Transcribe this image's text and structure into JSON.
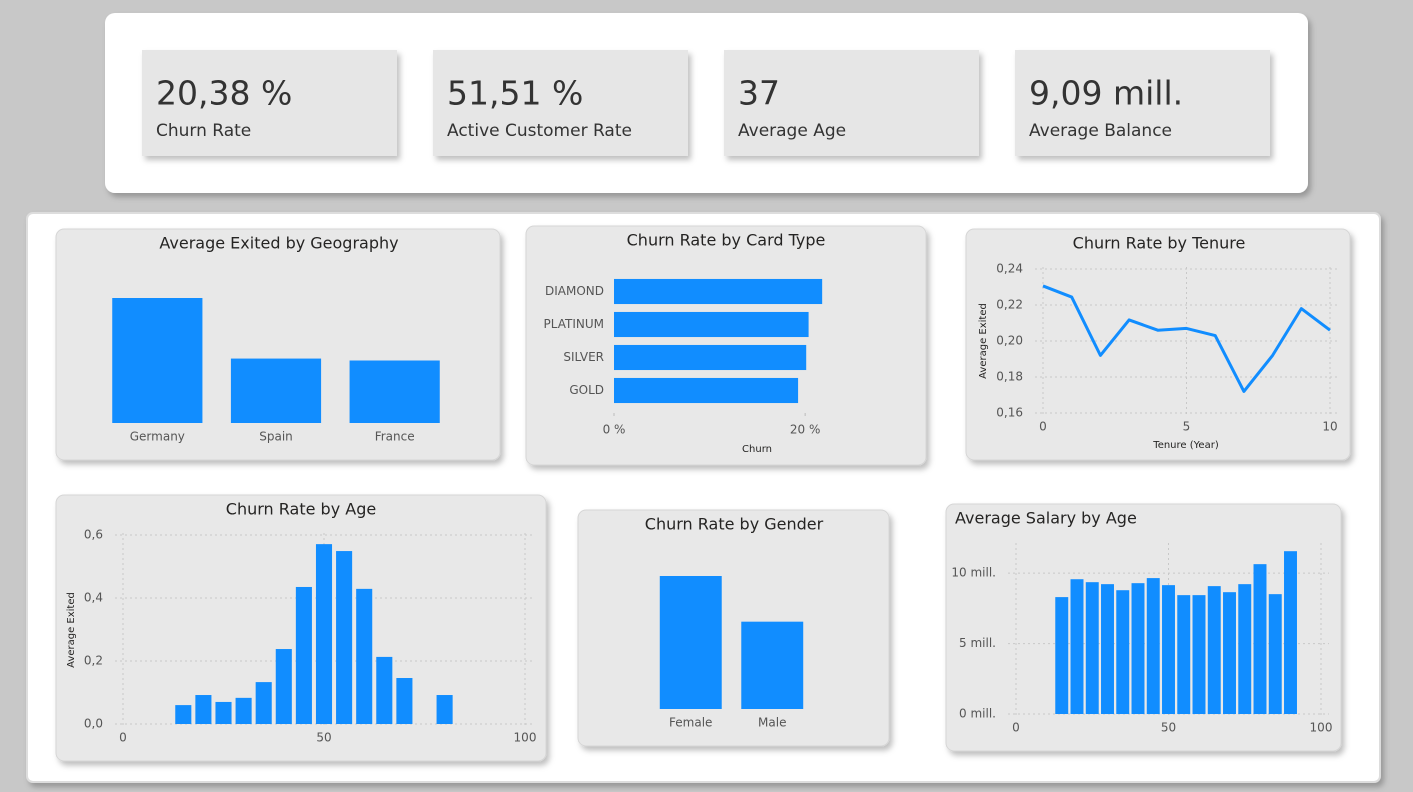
{
  "kpis": [
    {
      "value": "20,38 %",
      "label": "Churn Rate"
    },
    {
      "value": "51,51 %",
      "label": "Active Customer Rate"
    },
    {
      "value": "37",
      "label": "Average Age"
    },
    {
      "value": "9,09 mill.",
      "label": "Average Balance"
    }
  ],
  "chart_data": [
    {
      "type": "bar",
      "title": "Average Exited by Geography",
      "color": "#118dff",
      "categories": [
        "Germany",
        "Spain",
        "France"
      ],
      "values": [
        0.324,
        0.167,
        0.162
      ]
    },
    {
      "type": "bar",
      "horizontal": true,
      "title": "Churn Rate by Card Type",
      "color": "#118dff",
      "categories": [
        "DIAMOND",
        "PLATINUM",
        "SILVER",
        "GOLD"
      ],
      "values": [
        21.78,
        20.36,
        20.11,
        19.26
      ],
      "xlim": [
        0,
        22.6
      ],
      "xticks": [
        {
          "value": 0,
          "label": "0 %"
        },
        {
          "value": 20,
          "label": "20 %"
        }
      ],
      "xlabel": "Churn"
    },
    {
      "type": "line",
      "title": "Churn Rate by Tenure",
      "color": "#118dff",
      "grid": true,
      "x": [
        0,
        1,
        2,
        3,
        4,
        5,
        6,
        7,
        8,
        9,
        10
      ],
      "values": [
        0.2306,
        0.2244,
        0.192,
        0.2117,
        0.206,
        0.207,
        0.203,
        0.172,
        0.192,
        0.218,
        0.206
      ],
      "xlim": [
        0,
        10
      ],
      "xticks": [
        0,
        5,
        10
      ],
      "xlabel": "Tenure (Year)",
      "ylim": [
        0.16,
        0.24
      ],
      "yticks": [
        {
          "value": 0.16,
          "label": "0,16"
        },
        {
          "value": 0.18,
          "label": "0,18"
        },
        {
          "value": 0.2,
          "label": "0,20"
        },
        {
          "value": 0.22,
          "label": "0,22"
        },
        {
          "value": 0.24,
          "label": "0,24"
        }
      ],
      "ylabel": "Average Exited"
    },
    {
      "type": "bar",
      "title": "Churn Rate by Age",
      "color": "#118dff",
      "grid": true,
      "x": [
        15,
        20,
        25,
        30,
        35,
        40,
        45,
        50,
        55,
        60,
        65,
        70,
        80
      ],
      "values": [
        0.06,
        0.092,
        0.07,
        0.083,
        0.133,
        0.238,
        0.435,
        0.571,
        0.549,
        0.429,
        0.213,
        0.146,
        0.092
      ],
      "xlim": [
        0,
        100
      ],
      "xticks": [
        0,
        50,
        100
      ],
      "ylim": [
        0,
        0.6
      ],
      "yticks": [
        {
          "value": 0,
          "label": "0,0"
        },
        {
          "value": 0.2,
          "label": "0,2"
        },
        {
          "value": 0.4,
          "label": "0,4"
        },
        {
          "value": 0.6,
          "label": "0,6"
        }
      ],
      "ylabel": "Average Exited"
    },
    {
      "type": "bar",
      "title": "Churn Rate by Gender",
      "color": "#118dff",
      "categories": [
        "Female",
        "Male"
      ],
      "values": [
        0.2507,
        0.1646
      ]
    },
    {
      "type": "bar",
      "title": "Average Salary by Age",
      "color": "#118dff",
      "grid": true,
      "x": [
        15,
        20,
        25,
        30,
        35,
        40,
        45,
        50,
        55,
        60,
        65,
        70,
        75,
        80,
        85,
        90
      ],
      "values": [
        8300000,
        9570000,
        9360000,
        9220000,
        8790000,
        9290000,
        9650000,
        9150000,
        8440000,
        8440000,
        9080000,
        8650000,
        9220000,
        10640000,
        8510000,
        11560000
      ],
      "xlim": [
        0,
        100
      ],
      "xticks": [
        0,
        50,
        100
      ],
      "ylim": [
        0,
        12000000
      ],
      "yticks": [
        {
          "value": 0,
          "label": "0 mill."
        },
        {
          "value": 5000000,
          "label": "5 mill."
        },
        {
          "value": 10000000,
          "label": "10 mill."
        }
      ]
    }
  ]
}
